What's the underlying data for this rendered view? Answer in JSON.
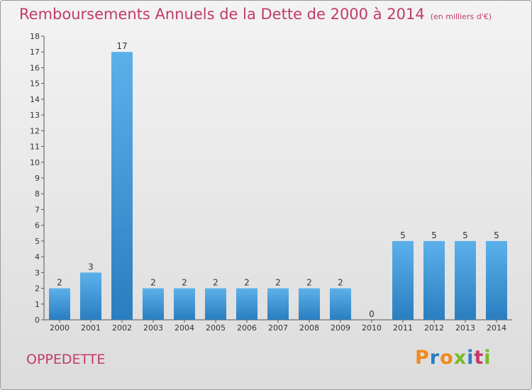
{
  "header": {
    "title": "Remboursements Annuels de la Dette de 2000 à 2014",
    "unit": "(en milliers d'€)"
  },
  "footer": {
    "commune": "OPPEDETTE",
    "logo": "Proxiti"
  },
  "colors": {
    "title": "#c13a6a",
    "bar_top": "#5cb0ea",
    "bar_bottom": "#2a7ec0",
    "logo": [
      "#f08a1c",
      "#2a7ec0",
      "#f08a1c",
      "#7ab829",
      "#2a7ec0",
      "#c13a6a",
      "#7ab829"
    ]
  },
  "chart_data": {
    "type": "bar",
    "title": "Remboursements Annuels de la Dette de 2000 à 2014",
    "subtitle": "(en milliers d'€)",
    "xlabel": "",
    "ylabel": "",
    "categories": [
      "2000",
      "2001",
      "2002",
      "2003",
      "2004",
      "2005",
      "2006",
      "2007",
      "2008",
      "2009",
      "2010",
      "2011",
      "2012",
      "2013",
      "2014"
    ],
    "values": [
      2,
      3,
      17,
      2,
      2,
      2,
      2,
      2,
      2,
      2,
      0,
      5,
      5,
      5,
      5
    ],
    "ylim": [
      0,
      18
    ],
    "yticks": [
      0,
      1,
      2,
      3,
      4,
      5,
      6,
      7,
      8,
      9,
      10,
      11,
      12,
      13,
      14,
      15,
      16,
      17,
      18
    ],
    "grid": false,
    "legend": "none"
  }
}
